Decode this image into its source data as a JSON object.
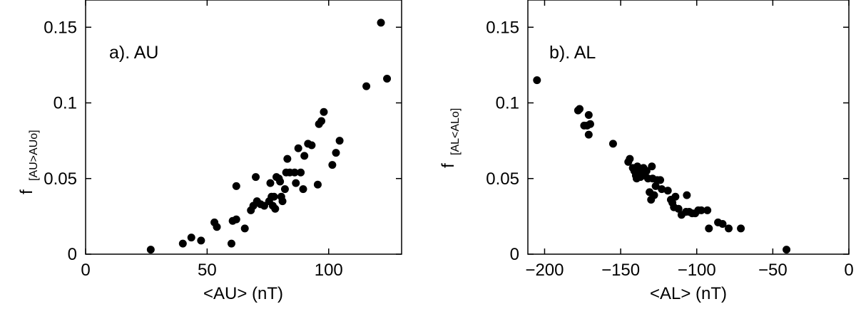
{
  "chart_data": [
    {
      "type": "scatter",
      "panel_label": "a). AU",
      "xlabel": "<AU> (nT)",
      "ylabel_main": "f",
      "ylabel_sub": "[AU>AUo]",
      "xlim": [
        0,
        130
      ],
      "ylim": [
        0,
        0.168
      ],
      "xticks": [
        0,
        50,
        100
      ],
      "xtick_labels": [
        "0",
        "50",
        "100"
      ],
      "yticks": [
        0,
        0.05,
        0.1,
        0.15
      ],
      "ytick_labels": [
        "0",
        "0.05",
        "0.1",
        "0.15"
      ],
      "grid": false,
      "points": [
        [
          26.8,
          0.003
        ],
        [
          40,
          0.007
        ],
        [
          43.5,
          0.011
        ],
        [
          47.5,
          0.009
        ],
        [
          53,
          0.021
        ],
        [
          54,
          0.018
        ],
        [
          60,
          0.007
        ],
        [
          60.5,
          0.022
        ],
        [
          62,
          0.023
        ],
        [
          62,
          0.045
        ],
        [
          65.5,
          0.017
        ],
        [
          68,
          0.029
        ],
        [
          69,
          0.032
        ],
        [
          70,
          0.051
        ],
        [
          70.5,
          0.035
        ],
        [
          72,
          0.033
        ],
        [
          73.5,
          0.032
        ],
        [
          75.5,
          0.035
        ],
        [
          76,
          0.047
        ],
        [
          76.5,
          0.038
        ],
        [
          77,
          0.032
        ],
        [
          77.5,
          0.038
        ],
        [
          78,
          0.03
        ],
        [
          78.5,
          0.051
        ],
        [
          79.5,
          0.05
        ],
        [
          80,
          0.048
        ],
        [
          80.5,
          0.038
        ],
        [
          81,
          0.035
        ],
        [
          82,
          0.043
        ],
        [
          82.5,
          0.054
        ],
        [
          83,
          0.063
        ],
        [
          84,
          0.054
        ],
        [
          86,
          0.054
        ],
        [
          86.5,
          0.047
        ],
        [
          87.5,
          0.07
        ],
        [
          88.5,
          0.054
        ],
        [
          89.5,
          0.043
        ],
        [
          90,
          0.065
        ],
        [
          91.5,
          0.073
        ],
        [
          93,
          0.072
        ],
        [
          95.5,
          0.046
        ],
        [
          96,
          0.086
        ],
        [
          97,
          0.088
        ],
        [
          98,
          0.094
        ],
        [
          101.5,
          0.059
        ],
        [
          103,
          0.067
        ],
        [
          104.5,
          0.075
        ],
        [
          115.5,
          0.111
        ],
        [
          121.5,
          0.153
        ],
        [
          124,
          0.116
        ]
      ]
    },
    {
      "type": "scatter",
      "panel_label": "b). AL",
      "xlabel": "<AL> (nT)",
      "ylabel_main": "f",
      "ylabel_sub": "[AL<ALo]",
      "xlim": [
        -211,
        0
      ],
      "ylim": [
        0,
        0.168
      ],
      "xticks": [
        -200,
        -150,
        -100,
        -50,
        0
      ],
      "xtick_labels": [
        "−200",
        "−150",
        "−100",
        "−50",
        "0"
      ],
      "yticks": [
        0,
        0.05,
        0.1,
        0.15
      ],
      "ytick_labels": [
        "0",
        "0.05",
        "0.1",
        "0.15"
      ],
      "grid": false,
      "points": [
        [
          -205,
          0.115
        ],
        [
          -178,
          0.095
        ],
        [
          -177,
          0.096
        ],
        [
          -174,
          0.085
        ],
        [
          -172,
          0.085
        ],
        [
          -171,
          0.079
        ],
        [
          -171,
          0.092
        ],
        [
          -170,
          0.086
        ],
        [
          -155,
          0.073
        ],
        [
          -145,
          0.061
        ],
        [
          -144,
          0.063
        ],
        [
          -142,
          0.057
        ],
        [
          -141,
          0.055
        ],
        [
          -140,
          0.052
        ],
        [
          -139.5,
          0.05
        ],
        [
          -139,
          0.058
        ],
        [
          -138,
          0.054
        ],
        [
          -137,
          0.051
        ],
        [
          -136,
          0.056
        ],
        [
          -135,
          0.057
        ],
        [
          -134,
          0.052
        ],
        [
          -133,
          0.055
        ],
        [
          -132,
          0.05
        ],
        [
          -131,
          0.041
        ],
        [
          -130,
          0.036
        ],
        [
          -129.5,
          0.058
        ],
        [
          -129,
          0.05
        ],
        [
          -128,
          0.039
        ],
        [
          -127,
          0.045
        ],
        [
          -126,
          0.049
        ],
        [
          -124,
          0.049
        ],
        [
          -123,
          0.043
        ],
        [
          -119,
          0.042
        ],
        [
          -117,
          0.036
        ],
        [
          -116,
          0.034
        ],
        [
          -115,
          0.031
        ],
        [
          -114,
          0.038
        ],
        [
          -112,
          0.03
        ],
        [
          -110,
          0.026
        ],
        [
          -107,
          0.028
        ],
        [
          -106.5,
          0.039
        ],
        [
          -105,
          0.028
        ],
        [
          -103,
          0.027
        ],
        [
          -101,
          0.027
        ],
        [
          -99,
          0.029
        ],
        [
          -97,
          0.029
        ],
        [
          -93,
          0.029
        ],
        [
          -92,
          0.017
        ],
        [
          -86,
          0.021
        ],
        [
          -83,
          0.02
        ],
        [
          -79,
          0.017
        ],
        [
          -71,
          0.017
        ],
        [
          -41,
          0.003
        ]
      ]
    }
  ]
}
